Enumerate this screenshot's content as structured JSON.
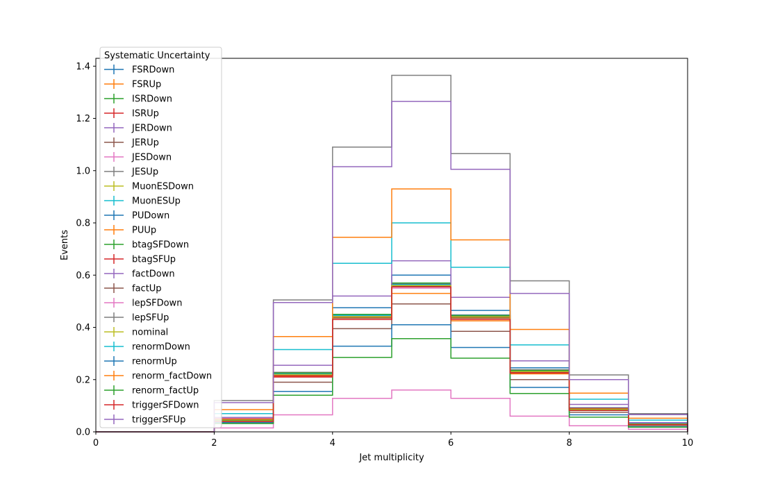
{
  "chart_data": {
    "type": "line",
    "drawstyle": "steps",
    "xlabel": "Jet multiplicity",
    "ylabel": "Events",
    "xlim": [
      0,
      10
    ],
    "ylim": [
      0,
      1.43
    ],
    "xticks": [
      "0",
      "2",
      "4",
      "6",
      "8",
      "10"
    ],
    "yticks": [
      "0.0",
      "0.2",
      "0.4",
      "0.6",
      "0.8",
      "1.0",
      "1.2",
      "1.4"
    ],
    "grid": false,
    "legend": {
      "title": "Systematic Uncertainty",
      "placement": "upper-left"
    },
    "bin_edges": [
      0,
      1,
      2,
      3,
      4,
      5,
      6,
      7,
      8,
      9,
      10
    ],
    "series": [
      {
        "name": "FSRDown",
        "color": "#1f77b4",
        "values": [
          0.0,
          0.0,
          0.05,
          0.22,
          0.445,
          0.565,
          0.445,
          0.235,
          0.09,
          0.03
        ]
      },
      {
        "name": "FSRUp",
        "color": "#ff7f0e",
        "values": [
          0.0,
          0.0,
          0.045,
          0.215,
          0.435,
          0.555,
          0.435,
          0.23,
          0.085,
          0.028
        ]
      },
      {
        "name": "ISRDown",
        "color": "#2ca02c",
        "values": [
          0.0,
          0.0,
          0.047,
          0.22,
          0.44,
          0.56,
          0.44,
          0.232,
          0.088,
          0.029
        ]
      },
      {
        "name": "ISRUp",
        "color": "#d62728",
        "values": [
          0.0,
          0.0,
          0.046,
          0.218,
          0.438,
          0.558,
          0.438,
          0.23,
          0.086,
          0.029
        ]
      },
      {
        "name": "JERDown",
        "color": "#9467bd",
        "values": [
          0.0,
          0.0,
          0.047,
          0.222,
          0.442,
          0.562,
          0.442,
          0.232,
          0.087,
          0.029
        ]
      },
      {
        "name": "JERUp",
        "color": "#8c564b",
        "values": [
          0.0,
          0.0,
          0.045,
          0.217,
          0.436,
          0.556,
          0.436,
          0.229,
          0.085,
          0.028
        ]
      },
      {
        "name": "JESDown",
        "color": "#e377c2",
        "values": [
          0.0,
          0.0,
          0.044,
          0.21,
          0.43,
          0.55,
          0.43,
          0.225,
          0.083,
          0.027
        ]
      },
      {
        "name": "JESUp",
        "color": "#7f7f7f",
        "values": [
          0.0,
          0.0,
          0.05,
          0.228,
          0.448,
          0.568,
          0.448,
          0.238,
          0.09,
          0.031
        ]
      },
      {
        "name": "MuonESDown",
        "color": "#bcbd22",
        "values": [
          0.0,
          0.0,
          0.046,
          0.22,
          0.445,
          0.562,
          0.445,
          0.233,
          0.087,
          0.029
        ]
      },
      {
        "name": "MuonESUp",
        "color": "#17becf",
        "values": [
          0.0,
          0.0,
          0.047,
          0.221,
          0.446,
          0.563,
          0.446,
          0.234,
          0.088,
          0.03
        ]
      },
      {
        "name": "PUDown",
        "color": "#1f77b4",
        "values": [
          0.0,
          0.0,
          0.048,
          0.225,
          0.475,
          0.6,
          0.465,
          0.245,
          0.092,
          0.031
        ]
      },
      {
        "name": "PUUp",
        "color": "#ff7f0e",
        "values": [
          0.0,
          0.0,
          0.044,
          0.213,
          0.43,
          0.53,
          0.425,
          0.222,
          0.082,
          0.027
        ]
      },
      {
        "name": "btagSFDown",
        "color": "#2ca02c",
        "values": [
          0.0,
          0.0,
          0.042,
          0.225,
          0.45,
          0.57,
          0.445,
          0.235,
          0.085,
          0.03
        ]
      },
      {
        "name": "btagSFUp",
        "color": "#d62728",
        "values": [
          0.0,
          0.0,
          0.05,
          0.215,
          0.44,
          0.555,
          0.44,
          0.23,
          0.09,
          0.028
        ]
      },
      {
        "name": "factDown",
        "color": "#9467bd",
        "values": [
          0.0,
          0.0,
          0.055,
          0.255,
          0.52,
          0.655,
          0.515,
          0.272,
          0.105,
          0.035
        ]
      },
      {
        "name": "factUp",
        "color": "#8c564b",
        "values": [
          0.0,
          0.0,
          0.04,
          0.19,
          0.395,
          0.49,
          0.385,
          0.2,
          0.075,
          0.025
        ]
      },
      {
        "name": "lepSFDown",
        "color": "#e377c2",
        "values": [
          0.0,
          0.0,
          0.015,
          0.065,
          0.128,
          0.16,
          0.128,
          0.06,
          0.023,
          0.01
        ]
      },
      {
        "name": "lepSFUp",
        "color": "#7f7f7f",
        "values": [
          0.0,
          0.0,
          0.12,
          0.505,
          1.09,
          1.365,
          1.065,
          0.578,
          0.218,
          0.07
        ]
      },
      {
        "name": "nominal",
        "color": "#bcbd22",
        "values": [
          0.0,
          0.0,
          0.046,
          0.219,
          0.44,
          0.56,
          0.44,
          0.231,
          0.087,
          0.029
        ]
      },
      {
        "name": "renormDown",
        "color": "#17becf",
        "values": [
          0.0,
          0.0,
          0.07,
          0.315,
          0.645,
          0.8,
          0.63,
          0.333,
          0.125,
          0.045
        ]
      },
      {
        "name": "renormUp",
        "color": "#1f77b4",
        "values": [
          0.0,
          0.0,
          0.035,
          0.155,
          0.328,
          0.41,
          0.323,
          0.17,
          0.065,
          0.02
        ]
      },
      {
        "name": "renorm_factDown",
        "color": "#ff7f0e",
        "values": [
          0.0,
          0.0,
          0.085,
          0.365,
          0.745,
          0.93,
          0.735,
          0.392,
          0.148,
          0.052
        ]
      },
      {
        "name": "renorm_factUp",
        "color": "#2ca02c",
        "values": [
          0.0,
          0.0,
          0.032,
          0.14,
          0.285,
          0.357,
          0.282,
          0.147,
          0.056,
          0.018
        ]
      },
      {
        "name": "triggerSFDown",
        "color": "#d62728",
        "values": [
          0.0,
          0.0,
          0.04,
          0.21,
          0.43,
          0.555,
          0.43,
          0.225,
          0.082,
          0.027
        ]
      },
      {
        "name": "triggerSFUp",
        "color": "#9467bd",
        "values": [
          0.0,
          0.0,
          0.112,
          0.495,
          1.015,
          1.265,
          1.005,
          0.53,
          0.2,
          0.066
        ]
      }
    ]
  }
}
